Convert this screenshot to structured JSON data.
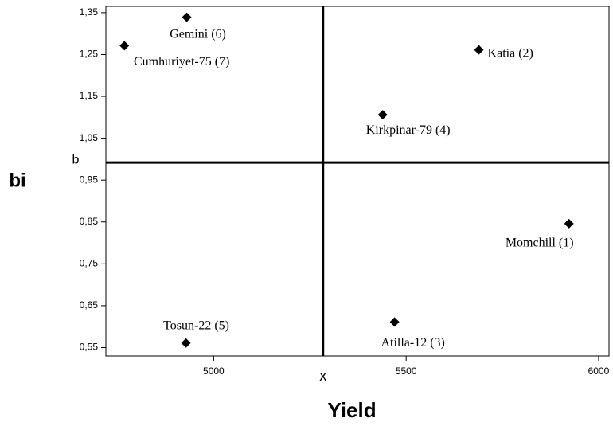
{
  "chart_data": {
    "type": "scatter",
    "xlabel": "Yield",
    "ylabel": "bi",
    "xlim": [
      4720,
      6027
    ],
    "ylim": [
      0.53,
      1.365
    ],
    "xticks": [
      5000,
      5500,
      6000
    ],
    "yticks": [
      {
        "value": 0.55,
        "label": "0,55"
      },
      {
        "value": 0.65,
        "label": "0,65"
      },
      {
        "value": 0.75,
        "label": "0,75"
      },
      {
        "value": 0.85,
        "label": "0,85"
      },
      {
        "value": 0.95,
        "label": "0,95"
      },
      {
        "value": 1.05,
        "label": "1,05"
      },
      {
        "value": 1.15,
        "label": "1,15"
      },
      {
        "value": 1.25,
        "label": "1,25"
      },
      {
        "value": 1.35,
        "label": "1,35"
      }
    ],
    "color": "#000000",
    "labels": [
      "Gemini (6)",
      "Cumhuriyet-75  (7)",
      "Katia (2)",
      "Kirkpinar-79 (4)",
      "Momchill (1)",
      "Atilla-12  (3)",
      "Tosun-22  (5)"
    ],
    "x": [
      4930,
      4768,
      5689,
      5439,
      5923,
      5470,
      4928
    ],
    "values": [
      1.339,
      1.271,
      1.261,
      1.106,
      0.846,
      0.611,
      0.561
    ],
    "mean_x": {
      "label": "x",
      "value": 5284
    },
    "mean_b": {
      "label": "b",
      "value": 0.992
    }
  }
}
